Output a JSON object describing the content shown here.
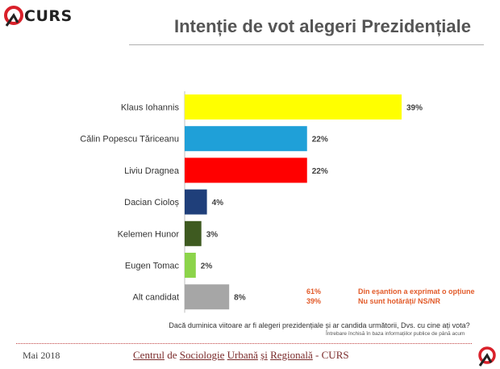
{
  "brand": {
    "name": "CURS",
    "accent": "#d9202a"
  },
  "title": "Intenție de vot alegeri Prezidențiale",
  "chart_data": {
    "type": "bar",
    "orientation": "horizontal",
    "categories": [
      "Klaus Iohannis",
      "Călin Popescu Tăriceanu",
      "Liviu Dragnea",
      "Dacian Cioloș",
      "Kelemen Hunor",
      "Eugen Tomac",
      "Alt candidat"
    ],
    "values": [
      39,
      22,
      22,
      4,
      3,
      2,
      8
    ],
    "value_labels": [
      "39%",
      "22%",
      "22%",
      "4%",
      "3%",
      "2%",
      "8%"
    ],
    "colors": [
      "#ffff00",
      "#1fa0d8",
      "#ff0000",
      "#1f3f7a",
      "#3e5a20",
      "#8cd44a",
      "#a6a6a6"
    ],
    "unit": "%",
    "xlim": [
      0,
      45
    ]
  },
  "legend_notes": [
    {
      "pct": "61%",
      "text": "Din eșantion a exprimat o opțiune"
    },
    {
      "pct": "39%",
      "text": "Nu sunt hotărâți/ NS/NR"
    }
  ],
  "question": "Dacă duminica viitoare ar fi alegeri prezidențiale  și ar candida următorii, Dvs. cu cine ați vota?",
  "note": "Întrebare închisă în baza informațiilor publice de până acum",
  "footer": {
    "date": "Mai 2018",
    "org_words": [
      "Centrul",
      "de",
      "Sociologie",
      "Urbană",
      "și",
      "Regională",
      "-",
      "CURS"
    ]
  }
}
